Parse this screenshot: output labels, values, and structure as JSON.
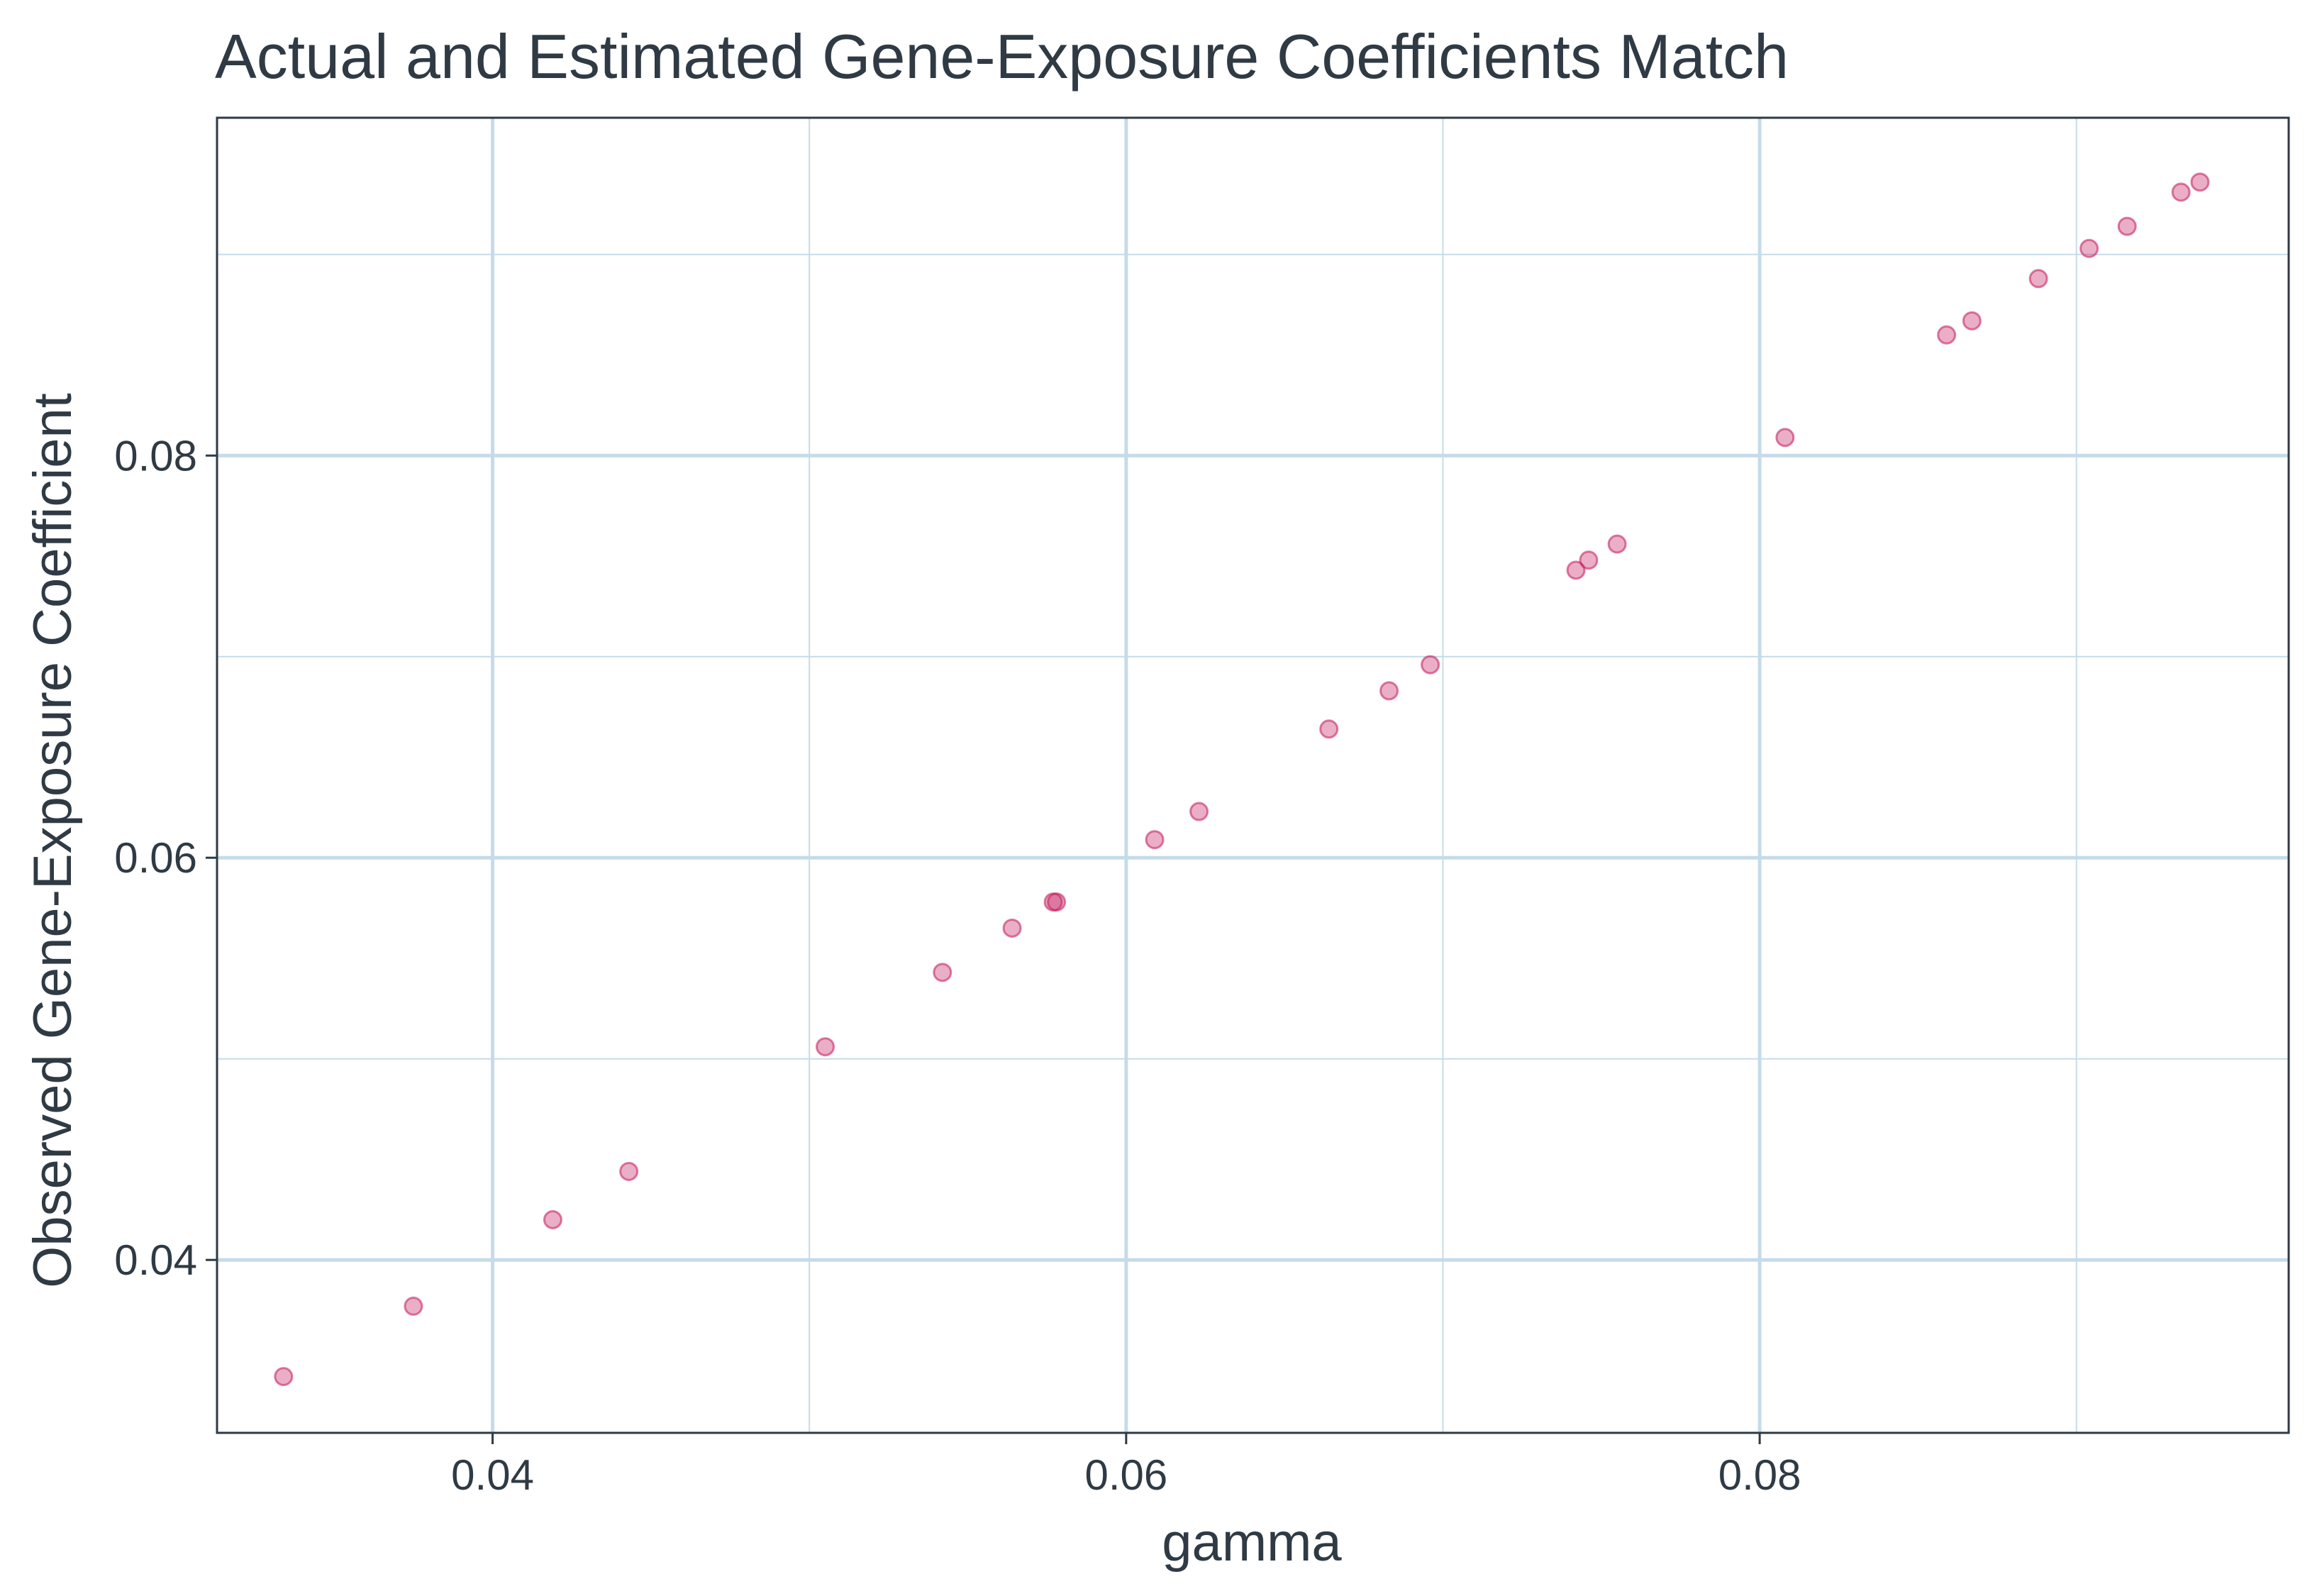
{
  "chart_data": {
    "type": "scatter",
    "title": "Actual and Estimated Gene-Exposure Coefficients Match",
    "xlabel": "gamma",
    "ylabel": "Observed Gene-Exposure Coefficient",
    "xlim": [
      0.0313,
      0.0967
    ],
    "ylim": [
      0.0314,
      0.0968
    ],
    "x_ticks": [
      0.04,
      0.06,
      0.08
    ],
    "y_ticks": [
      0.04,
      0.06,
      0.08
    ],
    "x_tick_labels": [
      "0.04",
      "0.06",
      "0.08"
    ],
    "y_tick_labels": [
      "0.04",
      "0.06",
      "0.08"
    ],
    "x_minor_ticks": [
      0.05,
      0.07,
      0.09
    ],
    "y_minor_ticks": [
      0.05,
      0.07,
      0.09
    ],
    "grid": true,
    "legend": "none",
    "point_color": "#c2185b",
    "grid_color": "#c6dbe9",
    "text_color": "#2f3a44",
    "x": [
      0.0334,
      0.0375,
      0.0419,
      0.0443,
      0.0505,
      0.0542,
      0.0564,
      0.0577,
      0.0578,
      0.0609,
      0.0623,
      0.0664,
      0.0683,
      0.0696,
      0.0742,
      0.0746,
      0.0755,
      0.0808,
      0.0859,
      0.0867,
      0.0888,
      0.0904,
      0.0916,
      0.0933,
      0.0939
    ],
    "y": [
      0.0342,
      0.0377,
      0.042,
      0.0444,
      0.0506,
      0.0543,
      0.0565,
      0.0578,
      0.0578,
      0.0609,
      0.0623,
      0.0664,
      0.0683,
      0.0696,
      0.0743,
      0.0748,
      0.0756,
      0.0809,
      0.086,
      0.0867,
      0.0888,
      0.0903,
      0.0914,
      0.0931,
      0.0936
    ]
  }
}
